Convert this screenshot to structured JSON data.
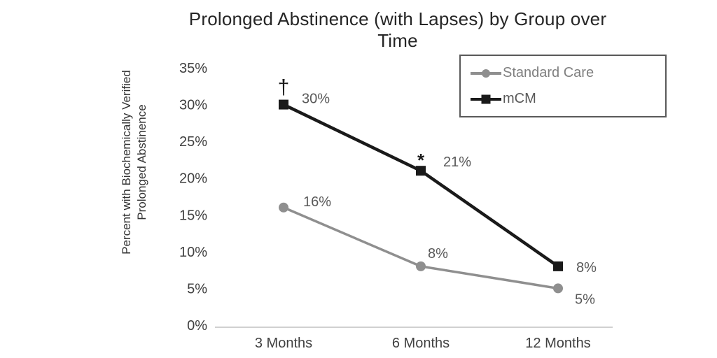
{
  "page": {
    "background": "#ffffff"
  },
  "chart_data": {
    "type": "line",
    "title": "Prolonged Abstinence (with Lapses) by Group over Time",
    "ylabel": "Percent with Biochemically Verified Prolonged Abstinence",
    "ylabel_line1": "Percent with Biochemically  Verified",
    "ylabel_line2": "Prolonged Abstinence",
    "xlabel": "",
    "categories": [
      "3 Months",
      "6 Months",
      "12 Months"
    ],
    "y_ticks": [
      "35%",
      "30%",
      "25%",
      "20%",
      "15%",
      "10%",
      "5%",
      "0%"
    ],
    "ylim": [
      0,
      35
    ],
    "grid": false,
    "legend_position": "top-right-boxed",
    "axis_color": "#c0c0c0",
    "tick_label_color": "#404040",
    "data_label_color": "#595959",
    "series": [
      {
        "name": "Standard Care",
        "marker": "circle",
        "color": "#8f8f8f",
        "label_color": "#7f7f7f",
        "values": [
          16,
          8,
          5
        ],
        "point_labels": [
          "16%",
          "8%",
          "5%"
        ],
        "annotations": [
          "",
          "",
          ""
        ]
      },
      {
        "name": "mCM",
        "marker": "square",
        "color": "#1a1a1a",
        "label_color": "#595959",
        "values": [
          30,
          21,
          8
        ],
        "point_labels": [
          "30%",
          "21%",
          "8%"
        ],
        "annotations": [
          "†",
          "*",
          ""
        ]
      }
    ]
  }
}
